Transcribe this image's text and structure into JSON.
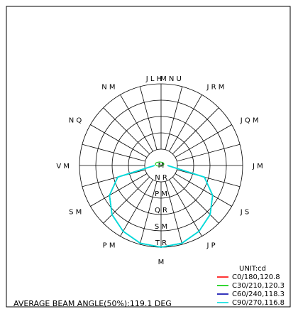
{
  "chart_data": {
    "type": "polar-candela",
    "unit": "UNIT:cd",
    "beam_angle_text": "AVERAGE BEAM ANGLE(50%):119.1 DEG",
    "rings": 5,
    "spokes_step_deg": 15,
    "ring_labels": [
      {
        "text": "N R",
        "ring": 1
      },
      {
        "text": "P M",
        "ring": 2
      },
      {
        "text": "Q R",
        "ring": 3
      },
      {
        "text": "S M",
        "ring": 4
      },
      {
        "text": "T R",
        "ring": 5
      },
      {
        "text": "M",
        "ring": 0
      }
    ],
    "angle_labels": [
      {
        "text": "J L H",
        "deg": 180,
        "side": "top-left"
      },
      {
        "text": "M N U",
        "deg": 180,
        "side": "top-right"
      },
      {
        "text": "J R M",
        "deg": 150
      },
      {
        "text": "N M",
        "deg": 210
      },
      {
        "text": "J Q M",
        "deg": 120
      },
      {
        "text": "N Q",
        "deg": 240
      },
      {
        "text": "J M",
        "deg": 90
      },
      {
        "text": "V M",
        "deg": 270
      },
      {
        "text": "J S",
        "deg": 60
      },
      {
        "text": "S M",
        "deg": 300
      },
      {
        "text": "J P",
        "deg": 30
      },
      {
        "text": "P M",
        "deg": 330
      },
      {
        "text": "M",
        "deg": 0
      }
    ],
    "series": [
      {
        "name": "C0/180,120.8",
        "color": "#ff0000",
        "angles": [
          0,
          15,
          30,
          45,
          60,
          75,
          90
        ],
        "values": [
          1.0,
          0.985,
          0.93,
          0.85,
          0.73,
          0.55,
          0.08
        ]
      },
      {
        "name": "C30/210,120.3",
        "color": "#00cc00",
        "angles": [
          0,
          15,
          30,
          45,
          60,
          75,
          90
        ],
        "values": [
          1.0,
          0.985,
          0.93,
          0.85,
          0.73,
          0.55,
          0.08
        ]
      },
      {
        "name": "C60/240,118.3",
        "color": "#0000aa",
        "angles": [
          0,
          15,
          30,
          45,
          60,
          75,
          90
        ],
        "values": [
          1.0,
          0.985,
          0.93,
          0.85,
          0.73,
          0.55,
          0.08
        ]
      },
      {
        "name": "C90/270,116.8",
        "color": "#00dddd",
        "angles": [
          0,
          15,
          30,
          45,
          60,
          75,
          90
        ],
        "values": [
          1.0,
          0.985,
          0.93,
          0.85,
          0.73,
          0.55,
          0.08
        ]
      }
    ]
  }
}
